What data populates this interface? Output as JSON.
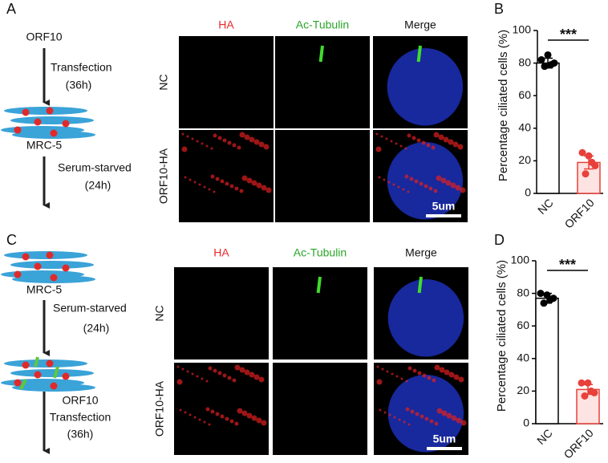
{
  "panel_labels": [
    "A",
    "B",
    "C",
    "D"
  ],
  "panel_a": {
    "diagram": {
      "agent": "ORF10",
      "step1": "Transfection",
      "step1_time": "(36h)",
      "cell": "MRC-5",
      "step2": "Serum-starved",
      "step2_time": "(24h)"
    },
    "columns": [
      "HA",
      "Ac-Tubulin",
      "Merge"
    ],
    "rows": [
      "NC",
      "ORF10-HA"
    ],
    "scale_bar": "5um"
  },
  "panel_c": {
    "diagram": {
      "cell": "MRC-5",
      "step1": "Serum-starved",
      "step1_time": "(24h)",
      "agent": "ORF10",
      "step2": "Transfection",
      "step2_time": "(36h)"
    },
    "columns": [
      "HA",
      "Ac-Tubulin",
      "Merge"
    ],
    "rows": [
      "NC",
      "ORF10-HA"
    ],
    "scale_bar": "5um"
  },
  "chart_data": [
    {
      "type": "bar",
      "y_label": "Percentage ciliated cells (%)",
      "categories": [
        "NC",
        "ORF10"
      ],
      "values": [
        80,
        19
      ],
      "errors": [
        3,
        4
      ],
      "points": [
        [
          82,
          85,
          80,
          78,
          79
        ],
        [
          25,
          23,
          17,
          12,
          19
        ]
      ],
      "edge_colors": [
        "#000000",
        "#e8403a"
      ],
      "fill_colors": [
        "#ffffff",
        "#fde3e1"
      ],
      "significance": "***",
      "ylim": [
        0,
        100
      ],
      "yticks": [
        0,
        20,
        40,
        60,
        80,
        100
      ]
    },
    {
      "type": "bar",
      "y_label": "Percentage ciliated cells (%)",
      "categories": [
        "NC",
        "ORF10"
      ],
      "values": [
        77,
        21
      ],
      "errors": [
        3,
        3
      ],
      "points": [
        [
          80,
          79,
          77,
          74,
          76
        ],
        [
          25,
          25,
          19,
          17,
          20
        ]
      ],
      "edge_colors": [
        "#000000",
        "#e8403a"
      ],
      "fill_colors": [
        "#ffffff",
        "#fde3e1"
      ],
      "significance": "***",
      "ylim": [
        0,
        100
      ],
      "yticks": [
        0,
        20,
        40,
        60,
        80,
        100
      ]
    }
  ]
}
